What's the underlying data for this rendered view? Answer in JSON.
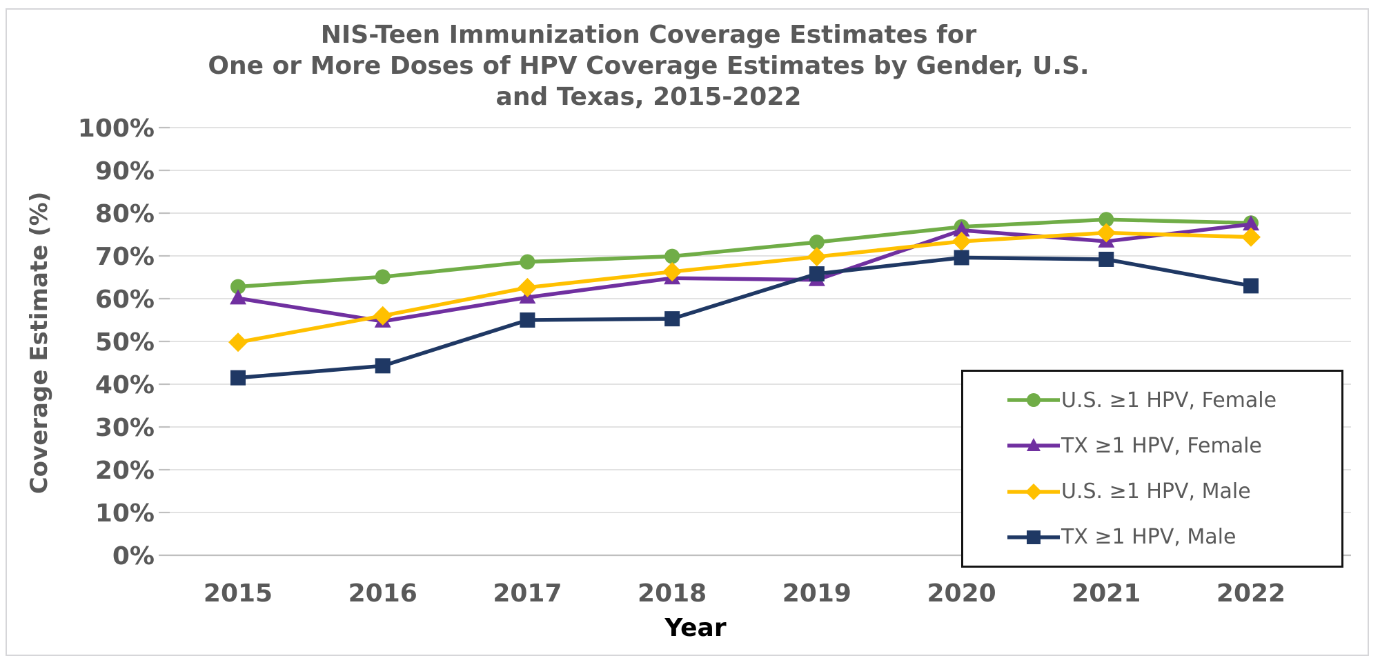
{
  "chart_data": {
    "type": "line",
    "title_lines": [
      "NIS-Teen Immunization Coverage Estimates for",
      "One or More Doses of HPV Coverage Estimates by Gender, U.S.",
      "and Texas, 2015-2022"
    ],
    "xlabel": "Year",
    "ylabel": "Coverage Estimate (%)",
    "categories": [
      "2015",
      "2016",
      "2017",
      "2018",
      "2019",
      "2020",
      "2021",
      "2022"
    ],
    "ylim": [
      0,
      100
    ],
    "y_tick_step": 10,
    "y_tick_labels": [
      "0%",
      "10%",
      "20%",
      "30%",
      "40%",
      "50%",
      "60%",
      "70%",
      "80%",
      "90%",
      "100%"
    ],
    "grid": true,
    "legend_position": "inside-bottom-right",
    "series": [
      {
        "name": "U.S. ≥1 HPV, Female",
        "color": "#70AD47",
        "marker": "circle",
        "values": [
          62.8,
          65.1,
          68.6,
          69.9,
          73.2,
          76.8,
          78.5,
          77.7
        ]
      },
      {
        "name": "TX ≥1 HPV, Female",
        "color": "#7030A0",
        "marker": "triangle",
        "values": [
          60.1,
          54.7,
          60.3,
          64.8,
          64.4,
          76.0,
          73.4,
          77.4
        ]
      },
      {
        "name": "U.S. ≥1 HPV, Male",
        "color": "#FFC000",
        "marker": "diamond",
        "values": [
          49.8,
          56.0,
          62.6,
          66.3,
          69.8,
          73.4,
          75.4,
          74.4
        ]
      },
      {
        "name": "TX ≥1 HPV, Male",
        "color": "#1F3864",
        "marker": "square",
        "values": [
          41.5,
          44.3,
          55.0,
          55.3,
          65.8,
          69.6,
          69.2,
          63.0
        ]
      }
    ],
    "style_colors": {
      "title_text": "#595959",
      "tick_text": "#595959",
      "x_axis_title_text": "#000000",
      "gridline": "#D9D9D9",
      "axis_line": "#BFBFBF",
      "legend_border": "#141414",
      "canvas_border": "#D6D6D9"
    }
  }
}
